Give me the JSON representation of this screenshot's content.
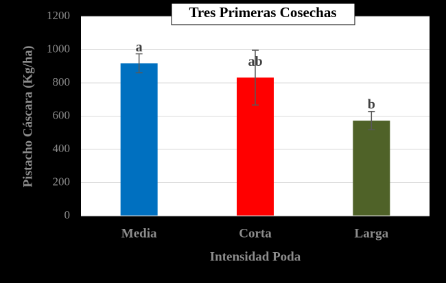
{
  "chart_data": {
    "type": "bar",
    "title": "Tres Primeras Cosechas",
    "x_label": "Intensidad Poda",
    "y_label": "Pistacho Cáscara (Kg/ha)",
    "categories": [
      "Media",
      "Corta",
      "Larga"
    ],
    "values": [
      918,
      832,
      573
    ],
    "errors": [
      57,
      165,
      55
    ],
    "annotations": [
      "a",
      "ab",
      "b"
    ],
    "colors": [
      "#0070c0",
      "#ff0000",
      "#4f6228"
    ],
    "ylim": [
      0,
      1200
    ],
    "yticks": [
      0,
      200,
      400,
      600,
      800,
      1000,
      1200
    ],
    "grid": true
  }
}
